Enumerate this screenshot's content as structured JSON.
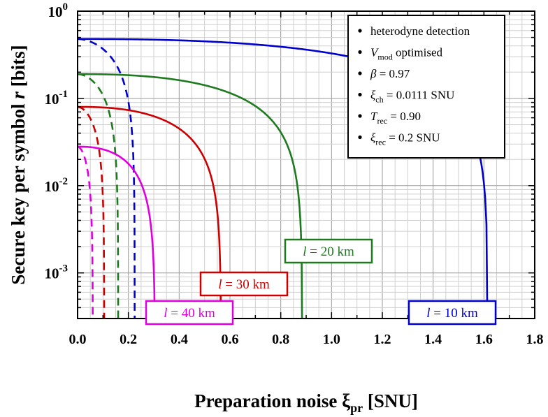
{
  "chart_data": {
    "type": "line",
    "xlabel": "Preparation noise ξ",
    "xlabel_sub": "pr",
    "xlabel_unit": " [SNU]",
    "ylabel": "Secure key per symbol ",
    "ylabel_var": "r",
    "ylabel_unit": " [bits]",
    "xlim": [
      0,
      1.8
    ],
    "ylim": [
      0.0003,
      1
    ],
    "yscale": "log",
    "grid": true,
    "x_ticks": [
      "0.0",
      "0.2",
      "0.4",
      "0.6",
      "0.8",
      "1.0",
      "1.2",
      "1.4",
      "1.6",
      "1.8"
    ],
    "y_ticks": [
      {
        "base": "10",
        "exp": "0"
      },
      {
        "base": "10",
        "exp": "-1"
      },
      {
        "base": "10",
        "exp": "-2"
      },
      {
        "base": "10",
        "exp": "-3"
      }
    ],
    "series": [
      {
        "distance": "10 km",
        "color": "#0000cc",
        "solid": {
          "r0": 0.48,
          "x_end": 1.615
        },
        "dashed": {
          "r0": 0.48,
          "x_end": 0.225
        }
      },
      {
        "distance": "20 km",
        "color": "#1e7a1e",
        "solid": {
          "r0": 0.19,
          "x_end": 0.885
        },
        "dashed": {
          "r0": 0.19,
          "x_end": 0.16
        }
      },
      {
        "distance": "30 km",
        "color": "#cc0000",
        "solid": {
          "r0": 0.08,
          "x_end": 0.565
        },
        "dashed": {
          "r0": 0.08,
          "x_end": 0.105
        }
      },
      {
        "distance": "40 km",
        "color": "#dd00dd",
        "solid": {
          "r0": 0.028,
          "x_end": 0.305
        },
        "dashed": {
          "r0": 0.028,
          "x_end": 0.06
        }
      }
    ],
    "annotations": [
      {
        "prefix": "l",
        "text": " = 10 km",
        "color": "#0000cc"
      },
      {
        "prefix": "l",
        "text": " = 20 km",
        "color": "#1e7a1e"
      },
      {
        "prefix": "l",
        "text": " = 30 km",
        "color": "#cc0000"
      },
      {
        "prefix": "l",
        "text": " = 40 km",
        "color": "#dd00dd"
      }
    ],
    "legend": {
      "placement": "top-right",
      "items": [
        {
          "main": "heterodyne detection",
          "sub": "",
          "rest": ""
        },
        {
          "main": "V",
          "sub": "mod",
          "rest": " optimised"
        },
        {
          "main": "β",
          "sub": "",
          "rest": " = 0.97"
        },
        {
          "main": "ξ",
          "sub": "ch",
          "rest": " = 0.0111 SNU"
        },
        {
          "main": "T",
          "sub": "rec",
          "rest": " = 0.90"
        },
        {
          "main": "ξ",
          "sub": "rec",
          "rest": " = 0.2 SNU"
        }
      ]
    }
  }
}
